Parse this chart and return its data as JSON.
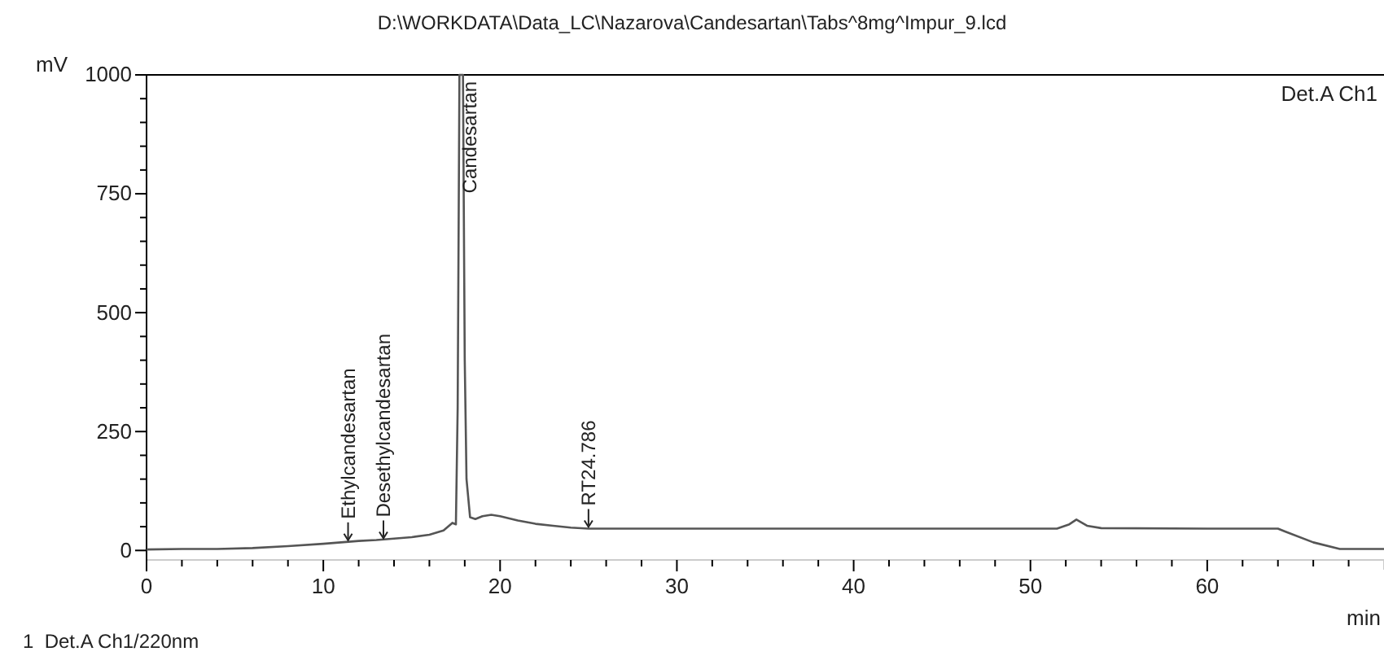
{
  "chart_data": {
    "type": "line",
    "title": "D:\\WORKDATA\\Data_LC\\Nazarova\\Candesartan\\Tabs^8mg^Impur_9.lcd",
    "subtitle": "Det.A Ch1",
    "xlabel": "min",
    "ylabel": "mV",
    "x": [
      0,
      2,
      4,
      6,
      8,
      10,
      11,
      12,
      13,
      14,
      15,
      16,
      16.8,
      17.3,
      17.5,
      17.6,
      17.7,
      17.9,
      18.0,
      18.1,
      18.3,
      18.6,
      19.0,
      19.5,
      20,
      21,
      22,
      23,
      24,
      25,
      30,
      40,
      45,
      51.5,
      52.2,
      52.6,
      53.2,
      54,
      60,
      64,
      64.4,
      66,
      67.5,
      70
    ],
    "series": [
      {
        "color": "#555555",
        "values": [
          2,
          3,
          3,
          5,
          9,
          14,
          17,
          20,
          22,
          25,
          28,
          33,
          42,
          58,
          55,
          300,
          1000,
          1000,
          400,
          150,
          70,
          66,
          72,
          75,
          72,
          63,
          56,
          52,
          48,
          46,
          46,
          46,
          46,
          46,
          55,
          65,
          52,
          47,
          46,
          46,
          40,
          17,
          3,
          3
        ]
      }
    ],
    "xlim": [
      0,
      70
    ],
    "ylim": [
      -20,
      1000
    ],
    "xticks": [
      0,
      {
        "value": 2,
        "label": null
      },
      {
        "value": 4,
        "label": null
      },
      {
        "value": 6,
        "label": null
      },
      {
        "value": 8,
        "label": null
      },
      10,
      {
        "value": 12,
        "label": null
      },
      {
        "value": 14,
        "label": null
      },
      {
        "value": 16,
        "label": null
      },
      {
        "value": 18,
        "label": null
      },
      20,
      {
        "value": 22,
        "label": null
      },
      {
        "value": 24,
        "label": null
      },
      {
        "value": 26,
        "label": null
      },
      {
        "value": 28,
        "label": null
      },
      30,
      {
        "value": 32,
        "label": null
      },
      {
        "value": 34,
        "label": null
      },
      {
        "value": 36,
        "label": null
      },
      {
        "value": 38,
        "label": null
      },
      40,
      {
        "value": 42,
        "label": null
      },
      {
        "value": 44,
        "label": null
      },
      {
        "value": 46,
        "label": null
      },
      {
        "value": 48,
        "label": null
      },
      50,
      {
        "value": 52,
        "label": null
      },
      {
        "value": 54,
        "label": null
      },
      {
        "value": 56,
        "label": null
      },
      {
        "value": 58,
        "label": null
      },
      60,
      {
        "value": 62,
        "label": null
      },
      {
        "value": 64,
        "label": null
      },
      {
        "value": 66,
        "label": null
      },
      {
        "value": 68,
        "label": null
      }
    ],
    "yticks": [
      0,
      {
        "value": 50,
        "label": null
      },
      {
        "value": 100,
        "label": null
      },
      {
        "value": 150,
        "label": null
      },
      {
        "value": 200,
        "label": null
      },
      250,
      {
        "value": 300,
        "label": null
      },
      {
        "value": 350,
        "label": null
      },
      {
        "value": 400,
        "label": null
      },
      {
        "value": 450,
        "label": null
      },
      500,
      {
        "value": 550,
        "label": null
      },
      {
        "value": 600,
        "label": null
      },
      {
        "value": 650,
        "label": null
      },
      {
        "value": 700,
        "label": null
      },
      750,
      {
        "value": 800,
        "label": null
      },
      {
        "value": 850,
        "label": null
      },
      {
        "value": 900,
        "label": null
      },
      {
        "value": 950,
        "label": null
      },
      1000
    ],
    "annotations": [
      {
        "text": "Ethylcandesartan",
        "x": 11.4,
        "y": 18
      },
      {
        "text": "Desethylcandesartan",
        "x": 13.4,
        "y": 22
      },
      {
        "text": "Candesartan",
        "x": 18.3,
        "y": 1000
      },
      {
        "text": "RT24.786",
        "x": 25,
        "y": 46
      },
      "1  Det.A Ch1/220nm"
    ]
  }
}
